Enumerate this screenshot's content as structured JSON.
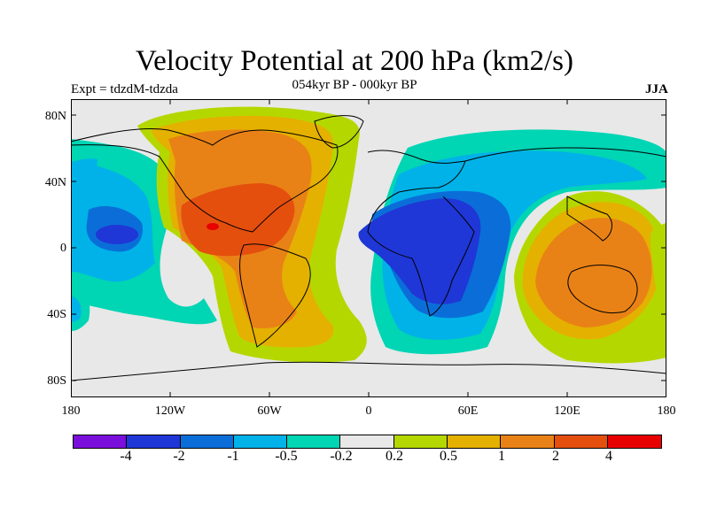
{
  "title": "Velocity Potential at 200 hPa (km2/s)",
  "subtitle": "054kyr BP - 000kyr BP",
  "experiment": "Expt = tdzdM-tdzda",
  "season": "JJA",
  "lat_ticks": [
    "80N",
    "40N",
    "0",
    "40S",
    "80S"
  ],
  "lon_ticks": [
    "180",
    "120W",
    "60W",
    "0",
    "60E",
    "120E",
    "180"
  ],
  "colorbar": {
    "colors": [
      "#7a0fdc",
      "#1f37d6",
      "#0b6ed8",
      "#00b2e8",
      "#00d5b4",
      "#e8e8e8",
      "#b5d700",
      "#e4b100",
      "#e98216",
      "#e44f0e",
      "#e80000"
    ],
    "labels": [
      "-4",
      "-2",
      "-1",
      "-0.5",
      "-0.2",
      "0.2",
      "0.5",
      "1",
      "2",
      "4"
    ]
  }
}
